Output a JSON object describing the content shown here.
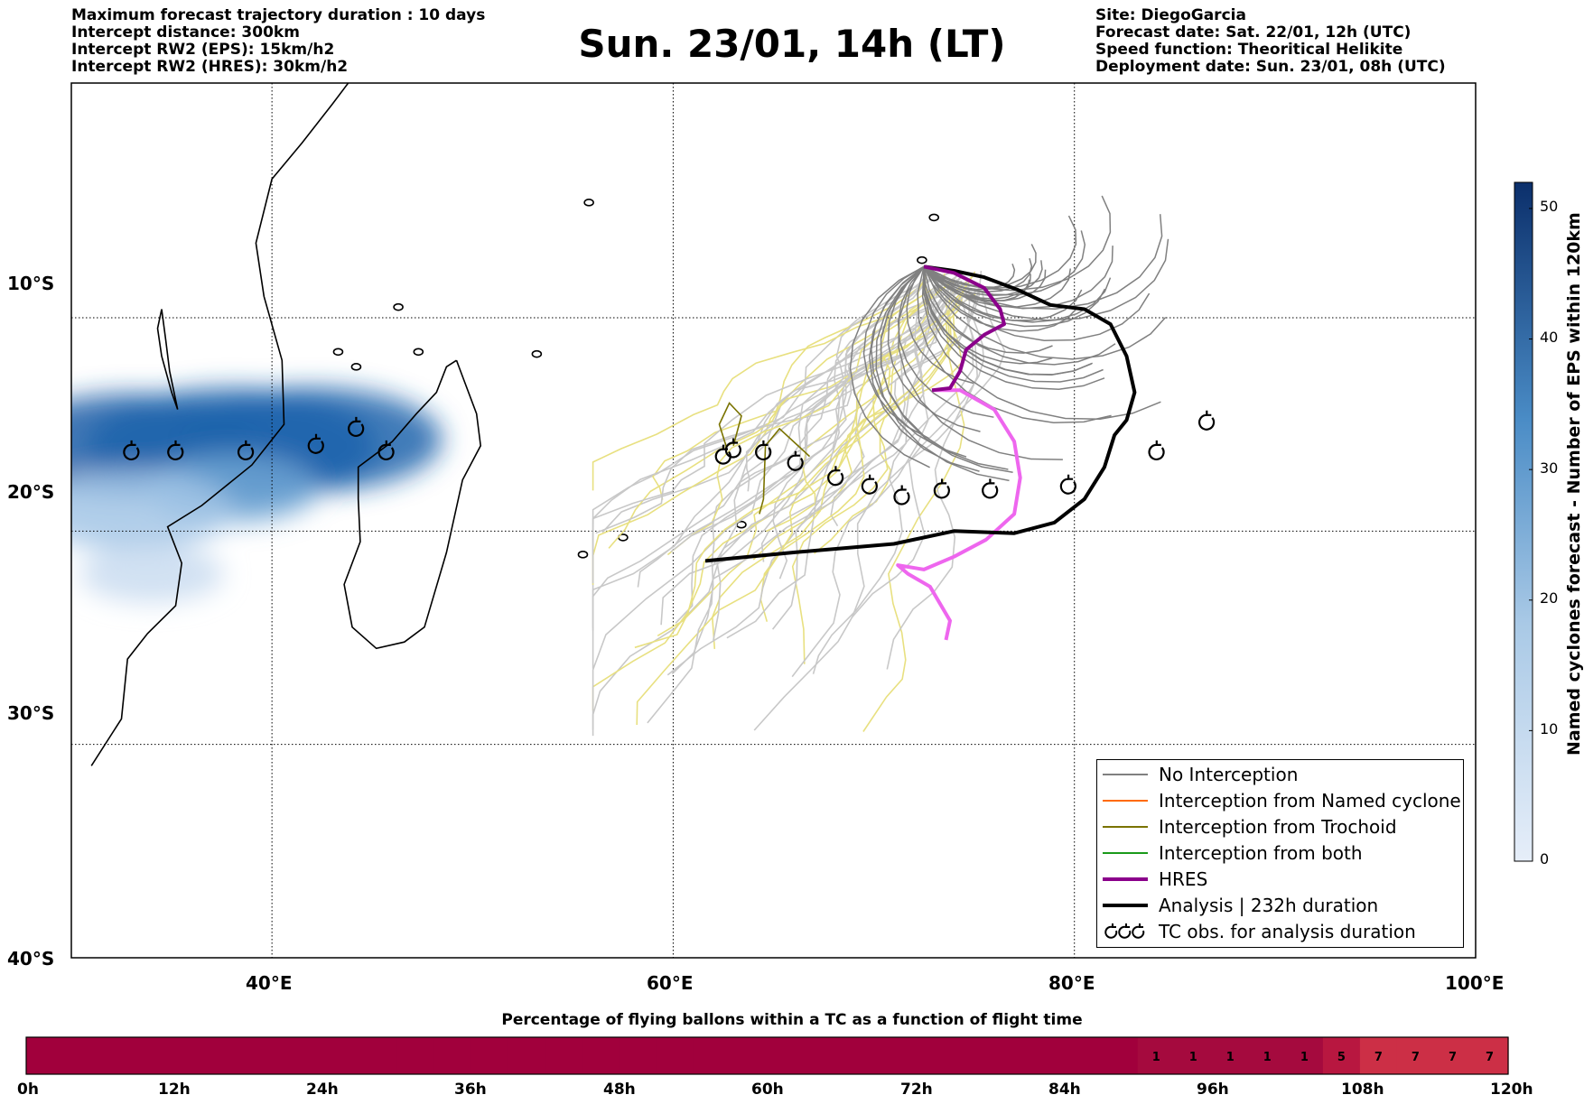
{
  "header": {
    "left": [
      "Maximum forecast trajectory duration : 10 days",
      "Intercept distance: 300km",
      "Intercept RW2 (EPS):  15km/h2",
      "Intercept RW2 (HRES): 30km/h2"
    ],
    "title": "Sun. 23/01, 14h (LT)",
    "right": [
      "Site: DiegoGarcia",
      "Forecast date: Sat. 22/01, 12h (UTC)",
      "Speed function: Theoritical Helikite",
      "Deployment date: Sun. 23/01, 08h (UTC)"
    ]
  },
  "map": {
    "lon_range": [
      30,
      100
    ],
    "lat_range": [
      -40,
      1
    ],
    "lon_ticks": [
      {
        "v": 40,
        "label": "40°E"
      },
      {
        "v": 60,
        "label": "60°E"
      },
      {
        "v": 80,
        "label": "80°E"
      },
      {
        "v": 100,
        "label": "100°E"
      }
    ],
    "lat_ticks": [
      {
        "v": -10,
        "label": "10°S"
      },
      {
        "v": -20,
        "label": "20°S"
      },
      {
        "v": -30,
        "label": "30°S"
      },
      {
        "v": -40,
        "label": "40°S"
      }
    ],
    "grid": true,
    "colors": {
      "no_interception": "#808080",
      "eps_faded": "#c8c8c8",
      "trochoid_faded": "#e8e080",
      "named_cyclone": "#ff6a00",
      "trochoid": "#7a7300",
      "both": "#1a9a1a",
      "hres": "#8b008b",
      "analysis": "#000000",
      "pink": "#ee66ee"
    },
    "analysis_track": [
      [
        61.6,
        -21.4
      ],
      [
        66,
        -21
      ],
      [
        71,
        -20.6
      ],
      [
        74,
        -20
      ],
      [
        77,
        -20.1
      ],
      [
        79,
        -19.6
      ],
      [
        80.5,
        -18.5
      ],
      [
        81.5,
        -17
      ],
      [
        82,
        -15.5
      ],
      [
        82.6,
        -14.8
      ],
      [
        83,
        -13.5
      ],
      [
        82.6,
        -11.8
      ],
      [
        81.8,
        -10.3
      ],
      [
        80.5,
        -9.6
      ],
      [
        78.8,
        -9.4
      ],
      [
        77.2,
        -8.7
      ],
      [
        75.5,
        -8.1
      ],
      [
        74,
        -7.8
      ],
      [
        72.5,
        -7.6
      ]
    ],
    "hres_track": [
      [
        72.5,
        -7.6
      ],
      [
        74,
        -7.9
      ],
      [
        75.5,
        -8.6
      ],
      [
        76.3,
        -9.6
      ],
      [
        76.5,
        -10.3
      ],
      [
        75.5,
        -10.8
      ],
      [
        74.6,
        -11.5
      ],
      [
        74.3,
        -12.5
      ],
      [
        73.8,
        -13.3
      ],
      [
        72.9,
        -13.4
      ]
    ],
    "pink_track": [
      [
        72.9,
        -13.4
      ],
      [
        74.3,
        -13.4
      ],
      [
        76,
        -14.3
      ],
      [
        77,
        -15.8
      ],
      [
        77.3,
        -17.5
      ],
      [
        77,
        -19.2
      ],
      [
        75.6,
        -20.4
      ],
      [
        74,
        -21.2
      ],
      [
        72.5,
        -21.8
      ],
      [
        71.2,
        -21.6
      ],
      [
        71.7,
        -22
      ],
      [
        72.8,
        -22.6
      ],
      [
        73.8,
        -24.2
      ],
      [
        73.6,
        -25.1
      ]
    ],
    "tc_obs": [
      [
        33,
        -16.3
      ],
      [
        35.2,
        -16.3
      ],
      [
        38.7,
        -16.3
      ],
      [
        42.2,
        -16
      ],
      [
        44.2,
        -15.2
      ],
      [
        45.7,
        -16.3
      ],
      [
        62.5,
        -16.5
      ],
      [
        63,
        -16.2
      ],
      [
        64.5,
        -16.3
      ],
      [
        66.1,
        -16.8
      ],
      [
        68.1,
        -17.5
      ],
      [
        69.8,
        -17.9
      ],
      [
        71.4,
        -18.4
      ],
      [
        73.4,
        -18.1
      ],
      [
        75.8,
        -18.1
      ],
      [
        79.7,
        -17.9
      ],
      [
        84.1,
        -16.3
      ],
      [
        86.6,
        -14.9
      ]
    ],
    "eps_density_blobs": [
      [
        33,
        -16,
        18,
        "#1f5fa8"
      ],
      [
        38,
        -16,
        20,
        "#1f64ad"
      ],
      [
        42,
        -15.7,
        18,
        "#1f64ad"
      ],
      [
        38,
        -18,
        12,
        "#6fa5d3"
      ],
      [
        33,
        -19,
        14,
        "#a3c6e6"
      ],
      [
        34,
        -22,
        10,
        "#c9dcf0"
      ]
    ]
  },
  "colorbar": {
    "title": "Named cyclones forecast - Number of EPS within 120km",
    "min": 0,
    "max": 52,
    "ticks": [
      0,
      10,
      20,
      30,
      40,
      50
    ],
    "color_low": "#e6eef9",
    "color_high": "#0b2f6b"
  },
  "legend": {
    "items": [
      {
        "label": "No Interception",
        "kind": "line",
        "color": "#808080"
      },
      {
        "label": "Interception from Named cyclone",
        "kind": "line",
        "color": "#ff6a00"
      },
      {
        "label": "Interception from Trochoid",
        "kind": "line",
        "color": "#7a7300"
      },
      {
        "label": "Interception from both",
        "kind": "line",
        "color": "#1a9a1a"
      },
      {
        "label": "HRES",
        "kind": "thick",
        "color": "#8b008b"
      },
      {
        "label": "Analysis | 232h duration",
        "kind": "thick",
        "color": "#000000"
      },
      {
        "label": "TC obs. for analysis duration",
        "kind": "tc",
        "color": "#000000"
      }
    ]
  },
  "time_bar": {
    "title": "Percentage of flying ballons within a TC as a function of flight time",
    "hours_max": 120,
    "step_h": 3,
    "tick_labels": [
      "0h",
      "12h",
      "24h",
      "36h",
      "48h",
      "60h",
      "72h",
      "84h",
      "96h",
      "108h",
      "120h"
    ],
    "values": [
      0,
      0,
      0,
      0,
      0,
      0,
      0,
      0,
      0,
      0,
      0,
      0,
      0,
      0,
      0,
      0,
      0,
      0,
      0,
      0,
      0,
      0,
      0,
      0,
      0,
      0,
      0,
      0,
      0,
      0,
      1,
      1,
      1,
      1,
      1,
      5,
      7,
      7,
      7,
      7
    ],
    "value_labels": [
      "",
      "",
      "",
      "",
      "",
      "",
      "",
      "",
      "",
      "",
      "",
      "",
      "",
      "",
      "",
      "",
      "",
      "",
      "",
      "",
      "",
      "",
      "",
      "",
      "",
      "",
      "",
      "",
      "",
      "",
      "1",
      "1",
      "1",
      "1",
      "1",
      "5",
      "7",
      "7",
      "7",
      "7"
    ],
    "color_base": "#a1003c",
    "color_mid": "#b81740",
    "color_high": "#cc2f46"
  }
}
